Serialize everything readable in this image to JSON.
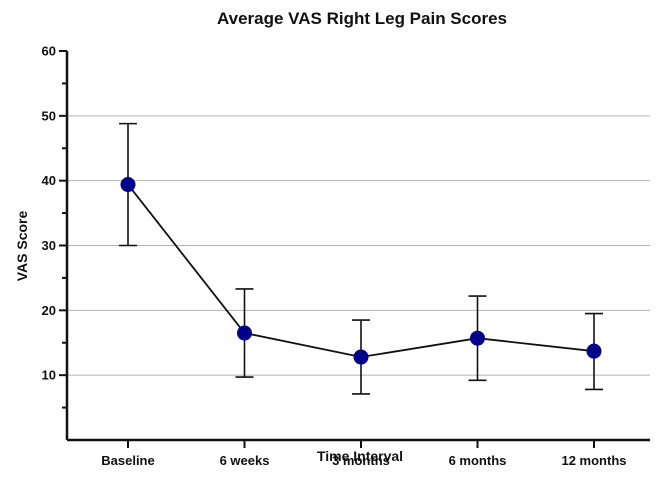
{
  "chart_data": {
    "type": "line",
    "title": "Average VAS Right Leg Pain Scores",
    "xlabel": "Time Interval",
    "ylabel": "VAS Score",
    "categories": [
      "Baseline",
      "6 weeks",
      "3 months",
      "6 months",
      "12 months"
    ],
    "series": [
      {
        "values": [
          39.4,
          16.5,
          12.8,
          15.7,
          13.7
        ],
        "error_upper": [
          48.8,
          23.3,
          18.5,
          22.2,
          19.5
        ],
        "error_lower": [
          30.0,
          9.7,
          7.1,
          9.2,
          7.8
        ],
        "color": "#00008b"
      }
    ],
    "ylim": [
      0,
      60
    ],
    "y_ticks": [
      10,
      20,
      30,
      40,
      50,
      60
    ],
    "grid": true,
    "grid_color": "#b3b3b3",
    "legend": "none"
  }
}
